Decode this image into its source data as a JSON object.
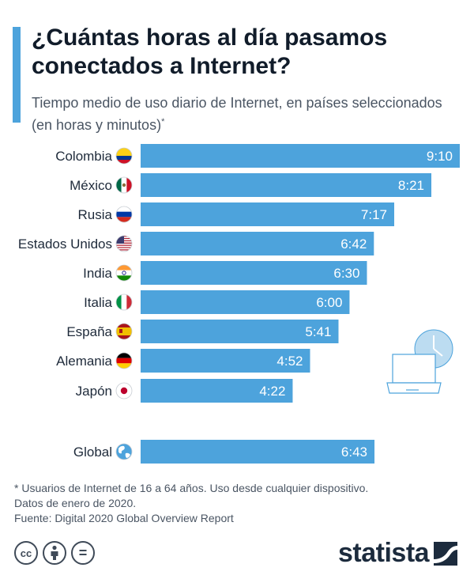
{
  "header": {
    "title": "¿Cuántas horas al día pasamos conectados a Internet?",
    "subtitle": "Tiempo medio de uso diario de Internet, en países seleccionados (en horas y minutos)",
    "subtitle_mark": "*"
  },
  "chart_data": {
    "type": "bar",
    "orientation": "horizontal",
    "bar_color": "#4da3dc",
    "label_color": "#ffffff",
    "categories": [
      "Colombia",
      "México",
      "Rusia",
      "Estados Unidos",
      "India",
      "Italia",
      "España",
      "Alemania",
      "Japón",
      "Global"
    ],
    "values_minutes": [
      550,
      501,
      437,
      402,
      390,
      360,
      341,
      292,
      262,
      403
    ],
    "labels": [
      "9:10",
      "8:21",
      "7:17",
      "6:42",
      "6:30",
      "6:00",
      "5:41",
      "4:52",
      "4:22",
      "6:43"
    ],
    "flags": [
      "colombia-flag-icon",
      "mexico-flag-icon",
      "russia-flag-icon",
      "usa-flag-icon",
      "india-flag-icon",
      "italy-flag-icon",
      "spain-flag-icon",
      "germany-flag-icon",
      "japan-flag-icon",
      "globe-icon"
    ],
    "xlabel": "",
    "ylabel": ""
  },
  "footnote": {
    "line1": "* Usuarios de Internet de 16 a 64 años. Uso desde cualquier dispositivo.",
    "line2": "Datos de enero de 2020.",
    "line3": "Fuente: Digital 2020 Global Overview Report"
  },
  "license_icons": [
    "cc-icon",
    "by-icon",
    "nd-icon"
  ],
  "license_text": {
    "cc": "cc",
    "nd": "="
  },
  "brand": {
    "name": "statista"
  }
}
